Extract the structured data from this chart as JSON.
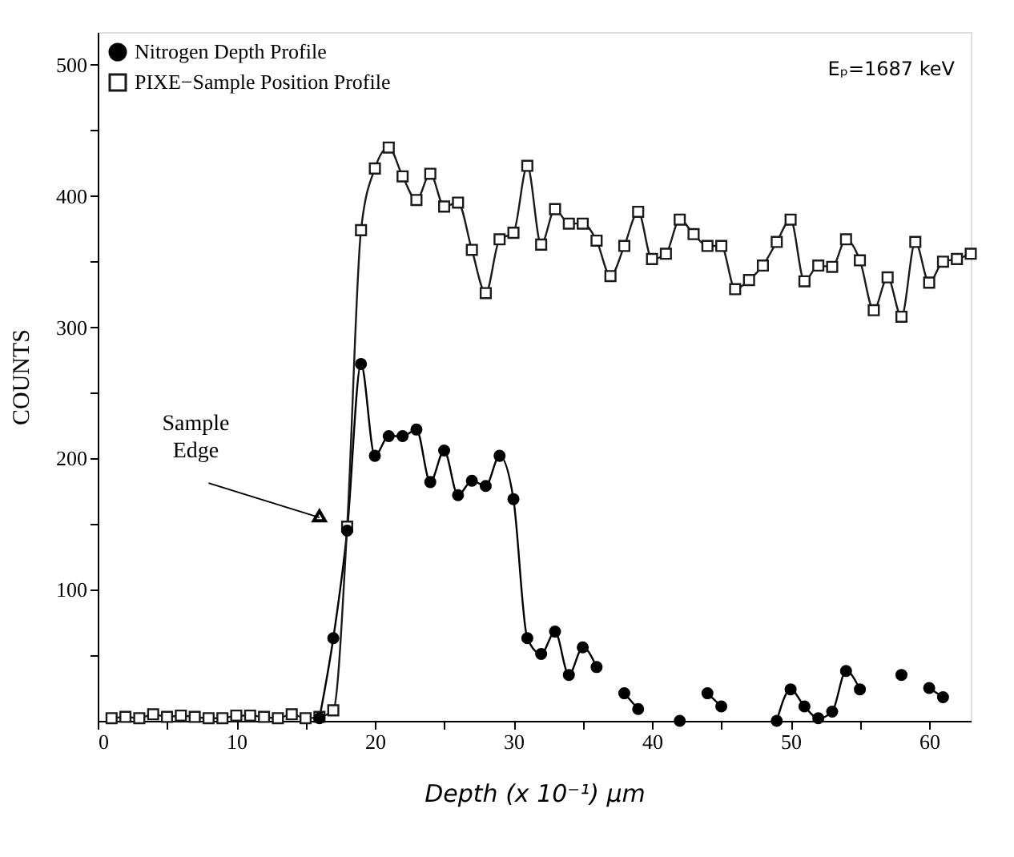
{
  "chart_data": {
    "type": "line",
    "xlabel": "Depth (x 10⁻¹) µm",
    "ylabel": "COUNTS",
    "annotations": [
      {
        "text": "Sample Edge",
        "x": 16,
        "y": 155
      },
      "Eₚ=1687 keV"
    ],
    "x": [
      1,
      2,
      3,
      4,
      5,
      6,
      7,
      8,
      9,
      10,
      11,
      12,
      13,
      14,
      15,
      16,
      17,
      18,
      19,
      20,
      21,
      22,
      23,
      24,
      25,
      26,
      27,
      28,
      29,
      30,
      31,
      32,
      33,
      34,
      35,
      36,
      37,
      38,
      39,
      40,
      41,
      42,
      43,
      44,
      45,
      46,
      47,
      48,
      49,
      50,
      51,
      52,
      53,
      54,
      55,
      56,
      57,
      58,
      59,
      60,
      61,
      62,
      63
    ],
    "series": [
      {
        "name": "Nitrogen Depth Profile",
        "color": "#000000",
        "marker": "circle",
        "values": [
          null,
          null,
          null,
          null,
          null,
          null,
          null,
          null,
          null,
          null,
          null,
          null,
          null,
          null,
          null,
          2,
          63,
          145,
          272,
          202,
          217,
          217,
          222,
          182,
          206,
          172,
          183,
          179,
          202,
          169,
          63,
          51,
          68,
          35,
          56,
          41,
          null,
          21,
          9,
          null,
          null,
          0,
          null,
          21,
          11,
          null,
          null,
          null,
          0,
          24,
          11,
          2,
          7,
          38,
          24,
          null,
          null,
          35,
          null,
          25,
          18,
          null,
          null
        ]
      },
      {
        "name": "PIXE−Sample Position Profile",
        "color": "#1a1a1a",
        "marker": "square",
        "values": [
          2,
          3,
          2,
          5,
          3,
          4,
          3,
          2,
          2,
          4,
          4,
          3,
          2,
          5,
          2,
          3,
          8,
          148,
          374,
          421,
          437,
          415,
          397,
          417,
          392,
          395,
          359,
          326,
          367,
          372,
          423,
          363,
          390,
          379,
          379,
          366,
          339,
          362,
          388,
          352,
          356,
          382,
          371,
          362,
          362,
          329,
          336,
          347,
          365,
          382,
          335,
          347,
          346,
          367,
          351,
          313,
          338,
          308,
          365,
          334,
          350,
          352,
          356
        ]
      }
    ],
    "xlim": [
      0,
      63
    ],
    "xticks": [
      0,
      {
        "value": 5,
        "label": null
      },
      10,
      {
        "value": 15,
        "label": null
      },
      20,
      {
        "value": 25,
        "label": null
      },
      30,
      {
        "value": 35,
        "label": null
      },
      40,
      {
        "value": 45,
        "label": null
      },
      50,
      {
        "value": 55,
        "label": null
      },
      60
    ],
    "ylim": [
      0,
      525
    ],
    "yticks": [
      {
        "value": 50,
        "label": null
      },
      100,
      {
        "value": 150,
        "label": null
      },
      200,
      {
        "value": 250,
        "label": null
      },
      300,
      {
        "value": 350,
        "label": null
      },
      400,
      {
        "value": 450,
        "label": null
      },
      500
    ],
    "grid": false,
    "legend": "top left",
    "line_style": "solid"
  }
}
